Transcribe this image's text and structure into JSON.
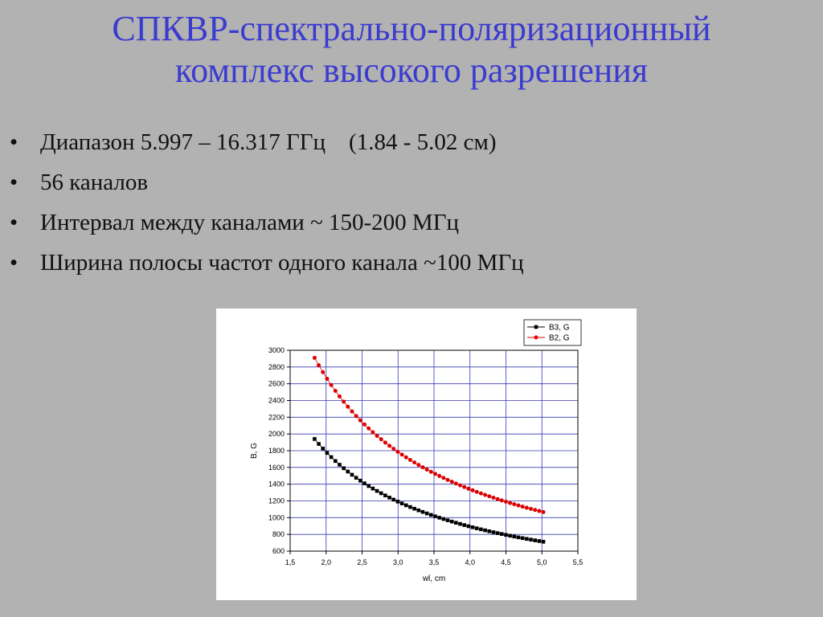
{
  "slide": {
    "title_line1": "СПКВР-спектрально-поляризационный",
    "title_line2": "комплекс высокого разрешения",
    "bullets": [
      "Диапазон 5.997 – 16.317 ГГц    (1.84 - 5.02 см)",
      "56 каналов",
      "Интервал между каналами ~ 150-200 МГц",
      "Ширина полосы частот одного канала ~100 МГц"
    ],
    "bullet_glyph": "•"
  },
  "chart_data": {
    "type": "scatter",
    "xlabel": "wl, cm",
    "ylabel": "B, G",
    "xlim": [
      1.5,
      5.5
    ],
    "ylim": [
      600,
      3000
    ],
    "xticks": [
      "1,5",
      "2,0",
      "2,5",
      "3,0",
      "3,5",
      "4,0",
      "4,5",
      "5,0",
      "5,5"
    ],
    "yticks": [
      "600",
      "800",
      "1000",
      "1200",
      "1400",
      "1600",
      "1800",
      "2000",
      "2200",
      "2400",
      "2600",
      "2800",
      "3000"
    ],
    "grid": true,
    "legend_position": "top-right",
    "series": [
      {
        "name": "B3, G",
        "color": "#000000",
        "marker": "square",
        "x_start": 1.84,
        "x_end": 5.02,
        "count": 56,
        "y_start": 1940,
        "y_end": 712
      },
      {
        "name": "B2, G",
        "color": "#dd0000",
        "marker": "circle",
        "x_start": 1.84,
        "x_end": 5.02,
        "count": 56,
        "y_start": 2910,
        "y_end": 1067
      }
    ]
  }
}
